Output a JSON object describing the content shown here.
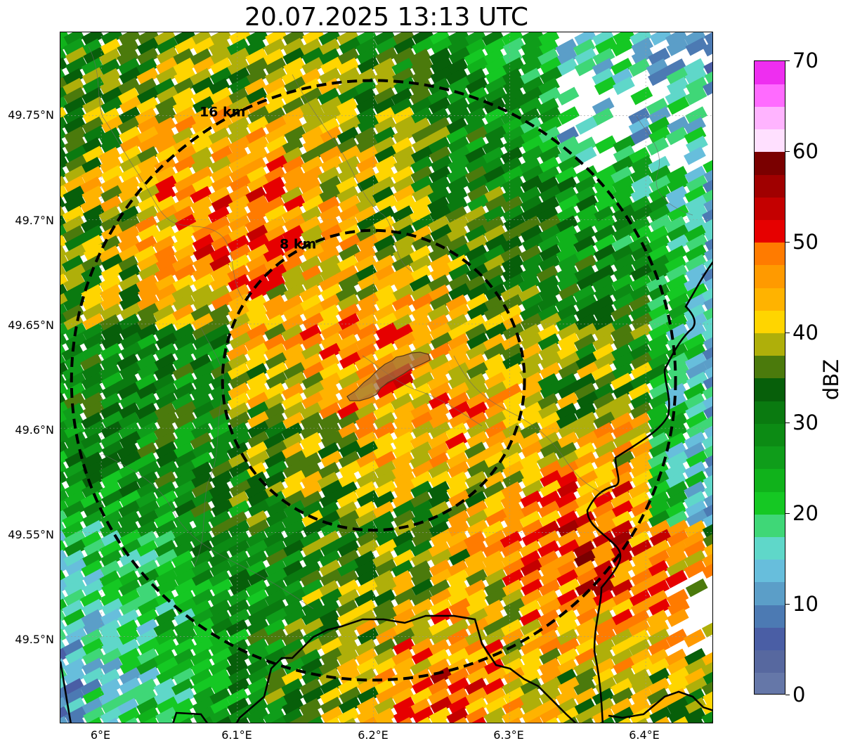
{
  "title": "20.07.2025 13:13 UTC",
  "map": {
    "lat_ticks": [
      "49.75°N",
      "49.7°N",
      "49.65°N",
      "49.6°N",
      "49.55°N",
      "49.5°N"
    ],
    "lon_ticks": [
      "6°E",
      "6.1°E",
      "6.2°E",
      "6.3°E",
      "6.4°E"
    ],
    "lat_values": [
      49.75,
      49.7,
      49.65,
      49.6,
      49.55,
      49.5
    ],
    "lon_values": [
      6.0,
      6.1,
      6.2,
      6.3,
      6.4
    ],
    "extent": {
      "lon_min": 5.97,
      "lon_max": 6.45,
      "lat_min": 49.458,
      "lat_max": 49.79
    },
    "center": {
      "lon": 6.2,
      "lat": 49.623
    },
    "rings": [
      {
        "label": "8 km",
        "radius_km": 8
      },
      {
        "label": "16 km",
        "radius_km": 16
      }
    ],
    "highlighted_area_color": "#a0703c",
    "grid": true
  },
  "colorbar": {
    "unit": "dBZ",
    "min": 0,
    "max": 70,
    "tick_labels": [
      "0",
      "10",
      "20",
      "30",
      "40",
      "50",
      "60",
      "70"
    ],
    "tick_values": [
      0,
      10,
      20,
      30,
      40,
      50,
      60,
      70
    ],
    "colors": [
      "#6577a8",
      "#57689f",
      "#4a5ea5",
      "#4c7ab3",
      "#5b9ec8",
      "#67bedc",
      "#5fd7c9",
      "#3fd777",
      "#15c823",
      "#10b21b",
      "#0f9d1a",
      "#0c8b14",
      "#0a7a10",
      "#075f0a",
      "#4b7a0c",
      "#afaf0a",
      "#ffd500",
      "#ffb300",
      "#ff9a00",
      "#ff7b00",
      "#e60000",
      "#c40000",
      "#a00000",
      "#7a0000",
      "#ffe0ff",
      "#ffb4ff",
      "#ff6bff",
      "#ee2ef0"
    ]
  }
}
